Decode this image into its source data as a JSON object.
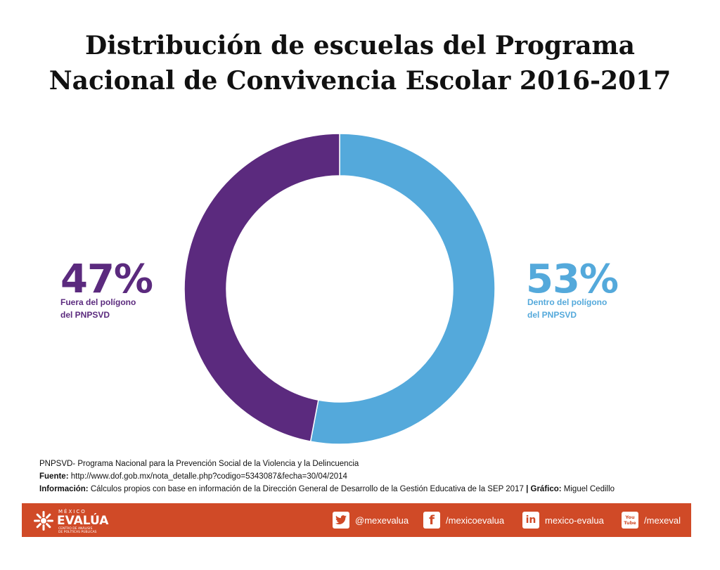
{
  "title": {
    "line1": "Distribución de escuelas del Programa",
    "line2": "Nacional de Convivencia Escolar 2016-2017"
  },
  "colors": {
    "dentro": "#54a9db",
    "fuera": "#5b2a7e",
    "footer": "#d04a27"
  },
  "chart_data": {
    "type": "pie",
    "title": "Distribución de escuelas del Programa Nacional de Convivencia Escolar 2016-2017",
    "donut": true,
    "series": [
      {
        "name": "Dentro del polígono del PNPSVD",
        "value": 53,
        "label": "53%",
        "desc_line1": "Dentro del polígono",
        "desc_line2": "del PNPSVD"
      },
      {
        "name": "Fuera del polígono del PNPSVD",
        "value": 47,
        "label": "47%",
        "desc_line1": "Fuera del polígono",
        "desc_line2": "del PNPSVD"
      }
    ]
  },
  "notes": {
    "line1": "PNPSVD- Programa Nacional para la Prevención Social de la Violencia y la Delincuencia",
    "fuente_label": "Fuente:",
    "fuente_text": "http://www.dof.gob.mx/nota_detalle.php?codigo=5343087&fecha=30/04/2014",
    "info_label": "Información:",
    "info_text": "Cálculos propios con base en información de la Dirección General de Desarrollo de la Gestión Educativa de la SEP 2017",
    "separator": "|",
    "grafico_label": "Gráfico:",
    "grafico_text": "Miguel Cedillo"
  },
  "footer": {
    "logo_top": "MÉXICO",
    "logo_main": "EVALÚA",
    "logo_sub1": "CENTRO DE ANÁLISIS",
    "logo_sub2": "DE POLÍTICAS PÚBLICAS",
    "twitter": "@mexevalua",
    "facebook": "/mexicoevalua",
    "linkedin": "mexico-evalua",
    "youtube": "/mexeval",
    "youtube_icon_top": "You",
    "youtube_icon_bottom": "Tube"
  }
}
